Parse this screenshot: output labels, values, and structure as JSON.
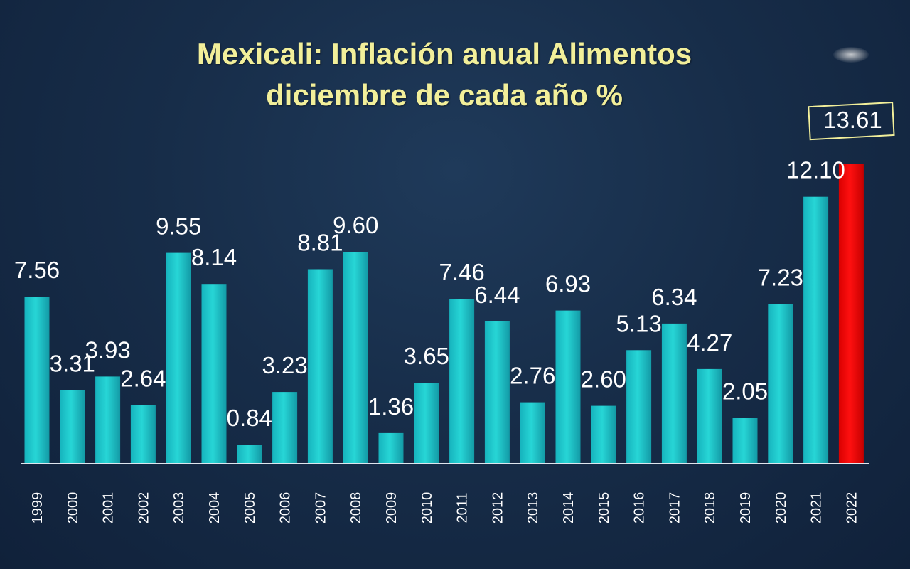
{
  "chart_data": {
    "type": "bar",
    "title_line1": "Mexicali: Inflación anual Alimentos",
    "title_line2": "diciembre de cada año %",
    "categories": [
      "1999",
      "2000",
      "2001",
      "2002",
      "2003",
      "2004",
      "2005",
      "2006",
      "2007",
      "2008",
      "2009",
      "2010",
      "2011",
      "2012",
      "2013",
      "2014",
      "2015",
      "2016",
      "2017",
      "2018",
      "2019",
      "2020",
      "2021",
      "2022"
    ],
    "values": [
      7.56,
      3.31,
      3.93,
      2.64,
      9.55,
      8.14,
      0.84,
      3.23,
      8.81,
      9.6,
      1.36,
      3.65,
      7.46,
      6.44,
      2.76,
      6.93,
      2.6,
      5.13,
      6.34,
      4.27,
      2.05,
      7.23,
      12.1,
      13.61
    ],
    "value_labels": [
      "7.56",
      "3.31",
      "3.93",
      "2.64",
      "9.55",
      "8.14",
      "0.84",
      "3.23",
      "8.81",
      "9.60",
      "1.36",
      "3.65",
      "7.46",
      "6.44",
      "2.76",
      "6.93",
      "2.60",
      "5.13",
      "6.34",
      "4.27",
      "2.05",
      "7.23",
      "12.10",
      "13.61"
    ],
    "highlight_category": "2022",
    "colors": {
      "bar": "#27d6d6",
      "highlight_bar": "#ff1010",
      "title": "#f2ef9a",
      "label": "#ffffff",
      "highlight_box": "#f2ef9a"
    },
    "xlabel": "",
    "ylabel": "",
    "ylim": [
      0,
      13.61
    ],
    "grid": false,
    "legend": "none"
  }
}
